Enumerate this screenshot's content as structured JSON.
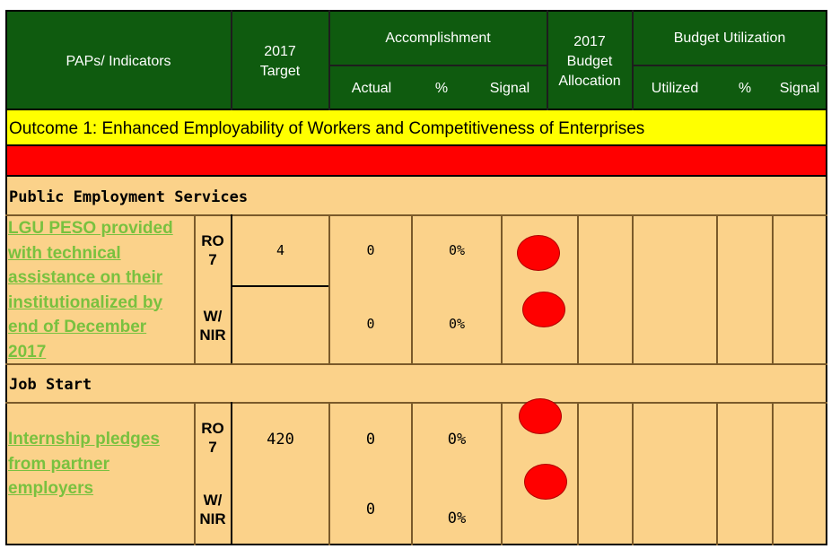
{
  "header": {
    "paps_indicators": "PAPs/ Indicators",
    "target_line1": "2017",
    "target_line2": "Target",
    "accomplishment": "Accomplishment",
    "actual": "Actual",
    "percent": "%",
    "signal": "Signal",
    "budget_line1": "2017",
    "budget_line2": "Budget",
    "budget_line3": "Allocation",
    "budget_utilization": "Budget Utilization",
    "utilized": "Utilized",
    "bu_percent": "%",
    "bu_signal": "Signal"
  },
  "outcome": "Outcome 1:  Enhanced Employability of Workers and Competitiveness of Enterprises",
  "colors": {
    "header_green": "#0f5b0f",
    "outcome_yellow": "#ffff00",
    "red_band": "#ff0000",
    "row_orange": "#fbd28a",
    "indicator_green": "#79c13f",
    "signal_red": "#ff0000"
  },
  "sections": [
    {
      "title": "Public Employment Services",
      "indicator": [
        "LGU PESO provided",
        "with technical",
        "assistance on their",
        "institutionalized by",
        "end of December",
        "2017"
      ],
      "target": "4",
      "rows": [
        {
          "unit": [
            "RO",
            "7"
          ],
          "actual": "0",
          "percent": "0%",
          "signal": "red"
        },
        {
          "unit": [
            "W/",
            "NIR"
          ],
          "actual": "0",
          "percent": "0%",
          "signal": "red"
        }
      ]
    },
    {
      "title": "Job Start",
      "indicator": [
        "Internship pledges",
        "from partner",
        "employers"
      ],
      "target": "420",
      "rows": [
        {
          "unit": [
            "RO",
            "7"
          ],
          "actual": "0",
          "percent": "0%",
          "signal": "red"
        },
        {
          "unit": [
            "W/",
            "NIR"
          ],
          "actual": "0",
          "percent": "0%",
          "signal": "red"
        }
      ]
    }
  ]
}
